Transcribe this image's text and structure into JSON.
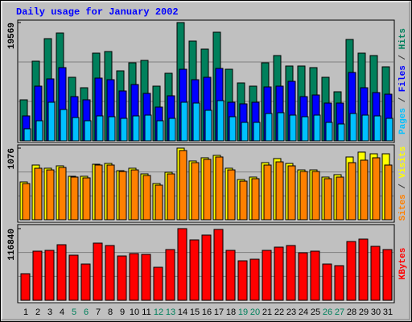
{
  "chart_data": [
    {
      "type": "bar",
      "title": "Daily usage for January 2002",
      "legend_separator": " / ",
      "ylim": [
        0,
        19569
      ],
      "yticks": [
        19569
      ],
      "series": [
        {
          "name": "Hits",
          "color": "#00805c",
          "values": [
            6789,
            13179,
            16907,
            17838,
            10517,
            8786,
            14510,
            14777,
            11582,
            12913,
            13312,
            9052,
            11182,
            19569,
            16507,
            15176,
            17972,
            11848,
            9585,
            9052,
            12913,
            14111,
            12380,
            12380,
            12114,
            10517,
            8120,
            16773,
            14510,
            14111,
            12247
          ]
        },
        {
          "name": "Files",
          "color": "#0000ff",
          "values": [
            4127,
            9052,
            10250,
            12114,
            7322,
            6789,
            10383,
            10117,
            8254,
            9318,
            7854,
            5591,
            7455,
            11848,
            10117,
            10517,
            11981,
            6390,
            6124,
            6390,
            8919,
            9052,
            9851,
            7322,
            7588,
            6257,
            6257,
            11315,
            8786,
            7987,
            7721
          ]
        },
        {
          "name": "Pages",
          "color": "#00c0ff",
          "values": [
            1997,
            3328,
            6390,
            5192,
            3861,
            3328,
            4127,
            3994,
            3727,
            4127,
            4260,
            3328,
            3727,
            6390,
            6257,
            5059,
            6656,
            3994,
            3062,
            3062,
            4526,
            4659,
            4260,
            3994,
            4260,
            3062,
            2796,
            4526,
            4260,
            4127,
            3727
          ]
        }
      ]
    },
    {
      "type": "bar",
      "ylim": [
        0,
        1076
      ],
      "yticks": [
        1076
      ],
      "series": [
        {
          "name": "Visits",
          "color": "#ffff00",
          "values": [
            568,
            822,
            774,
            810,
            653,
            653,
            834,
            846,
            737,
            774,
            689,
            544,
            713,
            1076,
            883,
            931,
            967,
            774,
            604,
            641,
            858,
            919,
            846,
            749,
            749,
            641,
            677,
            943,
            1016,
            991,
            991
          ]
        },
        {
          "name": "Sites",
          "color": "#ff8000",
          "values": [
            544,
            774,
            749,
            786,
            641,
            629,
            822,
            822,
            725,
            749,
            665,
            520,
            689,
            1040,
            858,
            907,
            943,
            749,
            580,
            617,
            822,
            870,
            810,
            725,
            725,
            617,
            641,
            858,
            895,
            931,
            822
          ]
        }
      ]
    },
    {
      "type": "bar",
      "ylim": [
        0,
        116840
      ],
      "yticks": [
        116840
      ],
      "categories": [
        "1",
        "2",
        "3",
        "4",
        "5",
        "6",
        "7",
        "8",
        "9",
        "10",
        "11",
        "12",
        "13",
        "14",
        "15",
        "16",
        "17",
        "18",
        "19",
        "20",
        "21",
        "22",
        "23",
        "24",
        "25",
        "26",
        "27",
        "28",
        "29",
        "30",
        "31"
      ],
      "category_colors": [
        "#000000",
        "#000000",
        "#000000",
        "#000000",
        "#00805c",
        "#00805c",
        "#000000",
        "#000000",
        "#000000",
        "#000000",
        "#000000",
        "#00805c",
        "#00805c",
        "#000000",
        "#000000",
        "#000000",
        "#000000",
        "#000000",
        "#00805c",
        "#00805c",
        "#000000",
        "#000000",
        "#000000",
        "#000000",
        "#000000",
        "#00805c",
        "#00805c",
        "#000000",
        "#000000",
        "#000000",
        "#000000"
      ],
      "series": [
        {
          "name": "KBytes",
          "color": "#ff0000",
          "values": [
            43323,
            80080,
            81392,
            90581,
            73515,
            59075,
            93207,
            89268,
            72203,
            76141,
            74828,
            53824,
            82705,
            116840,
            98461,
            106337,
            115527,
            81392,
            64326,
            66952,
            81392,
            86643,
            89268,
            77454,
            80080,
            59075,
            56449,
            95835,
            99773,
            87956,
            82705
          ]
        }
      ]
    }
  ]
}
